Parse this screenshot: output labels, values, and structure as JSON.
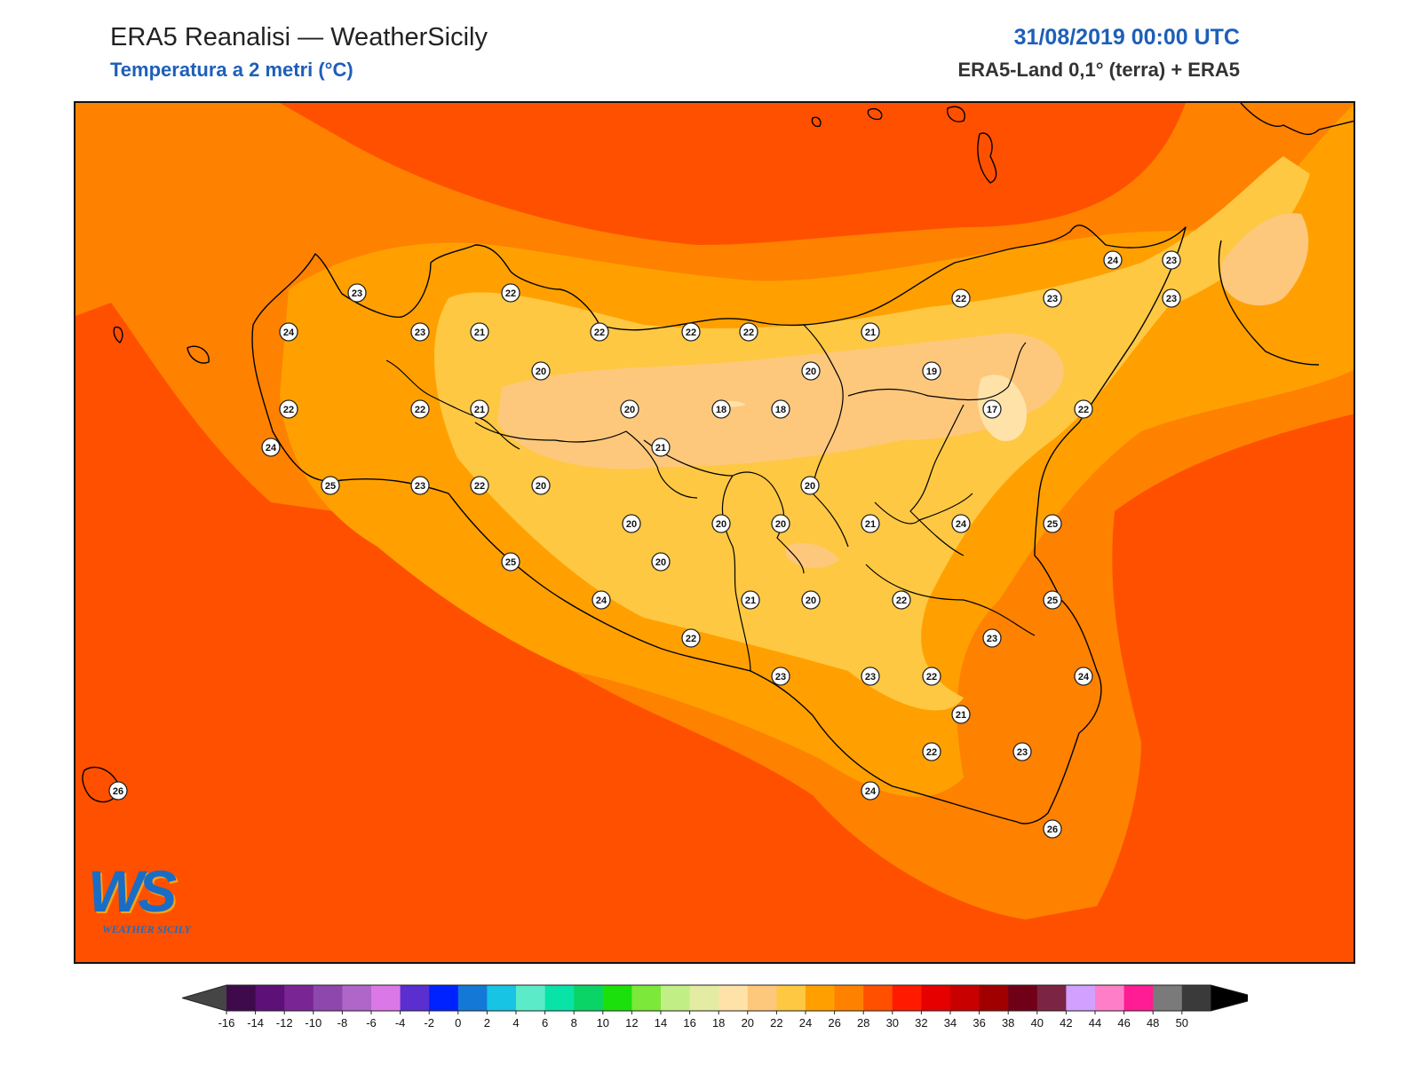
{
  "header": {
    "title": "ERA5 Reanalisi — WeatherSicily",
    "subtitle": "Temperatura a 2 metri (°C)",
    "datetime": "31/08/2019 00:00 UTC",
    "source": "ERA5-Land 0,1° (terra) + ERA5"
  },
  "logo": {
    "letters": "WS",
    "text": "WEATHER SICILY"
  },
  "station_values": [
    23,
    22,
    24,
    23,
    21,
    22,
    22,
    22,
    21,
    20,
    22,
    22,
    21,
    20,
    18,
    18,
    20,
    19,
    17,
    22,
    24,
    25,
    23,
    22,
    20,
    21,
    20,
    20,
    20,
    20,
    21,
    24,
    25,
    25,
    20,
    24,
    21,
    20,
    22,
    25,
    22,
    23,
    23,
    23,
    22,
    24,
    21,
    22,
    23,
    24,
    26,
    26,
    24,
    23,
    23,
    23,
    22
  ],
  "colorbar": {
    "ticks": [
      -16,
      -14,
      -12,
      -10,
      -8,
      -6,
      -4,
      -2,
      0,
      2,
      4,
      6,
      8,
      10,
      12,
      14,
      16,
      18,
      20,
      22,
      24,
      26,
      28,
      30,
      32,
      34,
      36,
      38,
      40,
      42,
      44,
      46,
      48,
      50
    ],
    "colors": [
      "#3f0a4c",
      "#5c1078",
      "#7a2594",
      "#8e47ad",
      "#b065c9",
      "#db78e8",
      "#5b2ecf",
      "#0022ff",
      "#1478d6",
      "#17c4e3",
      "#5cebc8",
      "#08e3a8",
      "#0ad466",
      "#1be00b",
      "#7be83a",
      "#c1ef86",
      "#e3eca2",
      "#ffe2a8",
      "#fdc87c",
      "#fec843",
      "#ffa000",
      "#ff8100",
      "#ff5000",
      "#ff1a00",
      "#e60000",
      "#c90000",
      "#a00000",
      "#700018",
      "#7b2443",
      "#d2a0ff",
      "#ff7ec8",
      "#ff1c94",
      "#7a7a7a",
      "#3a3a3a"
    ],
    "under_color": "#454545",
    "over_color": "#000000"
  }
}
